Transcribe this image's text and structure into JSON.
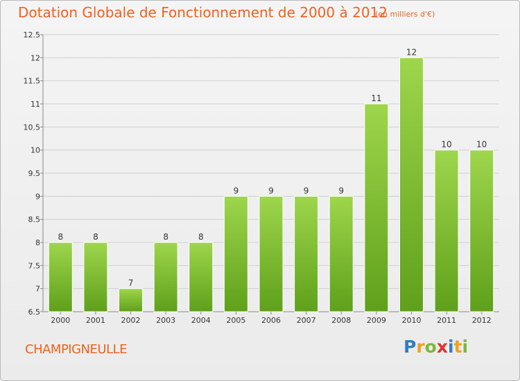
{
  "title": "Dotation Globale de Fonctionnement de 2000 à 2012",
  "unit_label": "(en milliers d'€)",
  "commune": "CHAMPIGNEULLE",
  "logo": {
    "letters": [
      "P",
      "r",
      "o",
      "x",
      "i",
      "t",
      "i"
    ],
    "colors": [
      "#2e7fc2",
      "#f0a020",
      "#7ab83a",
      "#e03030",
      "#2e7fc2",
      "#f0a020",
      "#7ab83a"
    ]
  },
  "colors": {
    "accent": "#ee6220",
    "bar_top": "#9ed64c",
    "bar_bottom": "#5fa01a"
  },
  "chart_data": {
    "type": "bar",
    "categories": [
      "2000",
      "2001",
      "2002",
      "2003",
      "2004",
      "2005",
      "2006",
      "2007",
      "2008",
      "2009",
      "2010",
      "2011",
      "2012"
    ],
    "values": [
      8,
      8,
      7,
      8,
      8,
      9,
      9,
      9,
      9,
      11,
      12,
      10,
      10
    ],
    "data_labels": [
      "8",
      "8",
      "7",
      "8",
      "8",
      "9",
      "9",
      "9",
      "9",
      "11",
      "12",
      "10",
      "10"
    ],
    "ylim": [
      6.5,
      12.5
    ],
    "yticks": [
      6.5,
      7,
      7.5,
      8,
      8.5,
      9,
      9.5,
      10,
      10.5,
      11,
      11.5,
      12,
      12.5
    ],
    "ytick_labels": [
      "6.5",
      "7",
      "7.5",
      "8",
      "8.5",
      "9",
      "9.5",
      "10",
      "10.5",
      "11",
      "11.5",
      "12",
      "12.5"
    ],
    "grid": true,
    "legend": "none"
  }
}
